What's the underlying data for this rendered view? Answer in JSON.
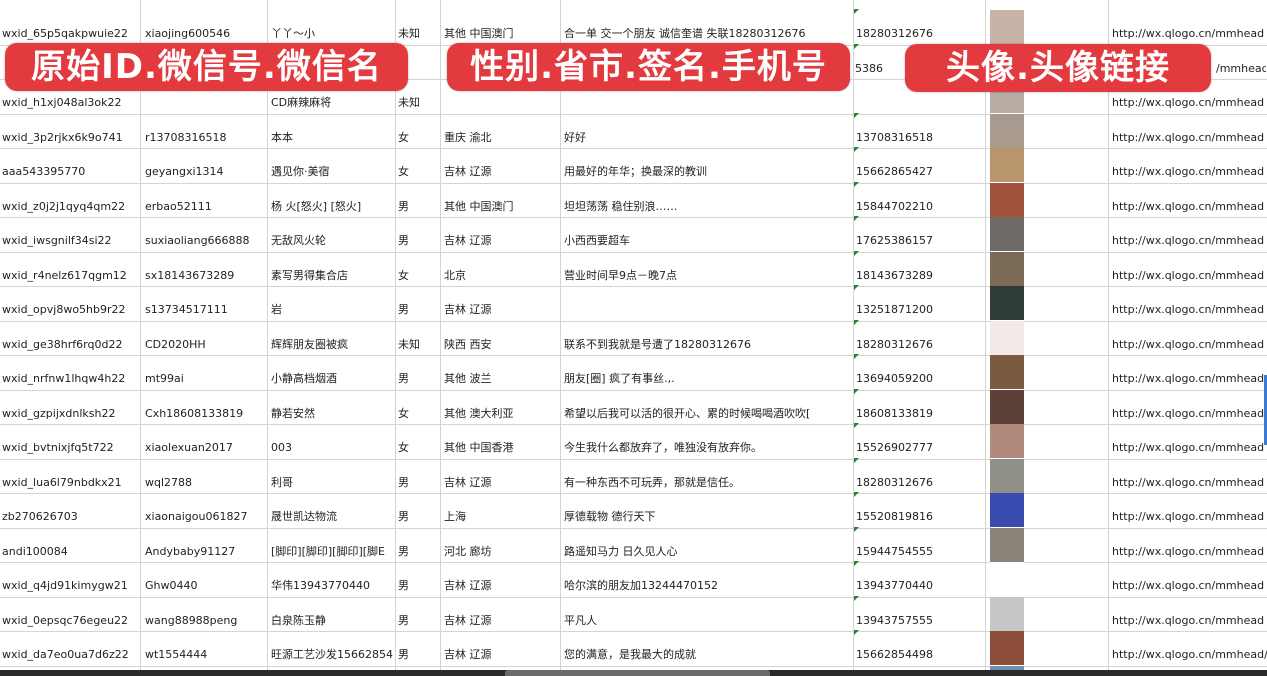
{
  "banners": {
    "left": "原始ID.微信号.微信名",
    "middle": "性别.省市.签名.手机号",
    "right": "头像.头像链接"
  },
  "rows": [
    {
      "id": "wxid_65p5qakpwuie22",
      "wechat": "xiaojing600546",
      "name": "丫丫～小",
      "gender": "未知",
      "region": "其他 中国澳门",
      "signature": "合一单 交一个朋友 诚信奎谱 失联18280312676",
      "phone": "18280312676",
      "avatar_color": "#c9b2a8",
      "link": "http://wx.qlogo.cn/mmhead"
    },
    {
      "id": "",
      "wechat": "",
      "name": "",
      "gender": "",
      "region": "",
      "signature": "",
      "phone": "5386",
      "avatar_color": "#8a8fb0",
      "link": "/mmhead"
    },
    {
      "id": "wxid_h1xj048al3ok22",
      "wechat": "",
      "name": "CD麻辣麻将",
      "gender": "未知",
      "region": "",
      "signature": "",
      "phone": "",
      "avatar_color": "#b7aca4",
      "link": "http://wx.qlogo.cn/mmhead"
    },
    {
      "id": "wxid_3p2rjkx6k9o741",
      "wechat": "r13708316518",
      "name": "本本",
      "gender": "女",
      "region": "重庆 渝北",
      "signature": "好好",
      "phone": "13708316518",
      "avatar_color": "#a89a8f",
      "link": "http://wx.qlogo.cn/mmhead"
    },
    {
      "id": "aaa543395770",
      "wechat": "geyangxi1314",
      "name": "遇见你·美宿",
      "gender": "女",
      "region": "吉林 辽源",
      "signature": "用最好的年华；换最深的教训",
      "phone": "15662865427",
      "avatar_color": "#b9956e",
      "link": "http://wx.qlogo.cn/mmhead"
    },
    {
      "id": "wxid_z0j2j1qyq4qm22",
      "wechat": "erbao52111",
      "name": "杨 火[怒火] [怒火]",
      "gender": "男",
      "region": "其他 中国澳门",
      "signature": "坦坦荡荡 稳住别浪……",
      "phone": "15844702210",
      "avatar_color": "#a0523d",
      "link": "http://wx.qlogo.cn/mmhead"
    },
    {
      "id": "wxid_iwsgnilf34si22",
      "wechat": "suxiaoliang666888",
      "name": "无敌风火轮",
      "gender": "男",
      "region": "吉林 辽源",
      "signature": "小西西要超车",
      "phone": "17625386157",
      "avatar_color": "#6e6a66",
      "link": "http://wx.qlogo.cn/mmhead"
    },
    {
      "id": "wxid_r4nelz617qgm12",
      "wechat": "sx18143673289",
      "name": "素写男得集合店",
      "gender": "女",
      "region": "北京",
      "signature": "营业时间早9点－晚7点",
      "phone": "18143673289",
      "avatar_color": "#7b6a55",
      "link": "http://wx.qlogo.cn/mmhead"
    },
    {
      "id": "wxid_opvj8wo5hb9r22",
      "wechat": "s13734517111",
      "name": "岩",
      "gender": "男",
      "region": "吉林 辽源",
      "signature": "",
      "phone": "13251871200",
      "avatar_color": "#2f3b35",
      "link": "http://wx.qlogo.cn/mmhead"
    },
    {
      "id": "wxid_ge38hrf6rq0d22",
      "wechat": "CD2020HH",
      "name": "辉辉朋友圈被疯",
      "gender": "未知",
      "region": "陕西 西安",
      "signature": "联系不到我就是号遭了18280312676",
      "phone": "18280312676",
      "avatar_color": "#f3e9e6",
      "link": "http://wx.qlogo.cn/mmhead"
    },
    {
      "id": "wxid_nrfnw1lhqw4h22",
      "wechat": "mt99ai",
      "name": "小静高档烟酒",
      "gender": "男",
      "region": "其他 波兰",
      "signature": "朋友[圈] 疯了有事丝.,.",
      "phone": "13694059200",
      "avatar_color": "#7c5a42",
      "link": "http://wx.qlogo.cn/mmhead"
    },
    {
      "id": "wxid_gzpijxdnlksh22",
      "wechat": "Cxh18608133819",
      "name": "静若安然",
      "gender": "女",
      "region": "其他 澳大利亚",
      "signature": "希望以后我可以活的很开心、累的时候喝喝酒吹吹[",
      "phone": "18608133819",
      "avatar_color": "#5a4038",
      "link": "http://wx.qlogo.cn/mmhead"
    },
    {
      "id": "wxid_bvtnixjfq5t722",
      "wechat": "xiaolexuan2017",
      "name": "003",
      "gender": "女",
      "region": "其他 中国香港",
      "signature": "今生我什么都放弃了，唯独没有放弃你。",
      "phone": "15526902777",
      "avatar_color": "#b08a7c",
      "link": "http://wx.qlogo.cn/mmhead"
    },
    {
      "id": "wxid_lua6l79nbdkx21",
      "wechat": "wql2788",
      "name": "利哥",
      "gender": "男",
      "region": "吉林 辽源",
      "signature": "有一种东西不可玩弄，那就是信任。",
      "phone": "18280312676",
      "avatar_color": "#8f9189",
      "link": "http://wx.qlogo.cn/mmhead"
    },
    {
      "id": "zb270626703",
      "wechat": "xiaonaigou061827",
      "name": "晟世凯达物流",
      "gender": "男",
      "region": "上海",
      "signature": "厚德载物 德行天下",
      "phone": "15520819816",
      "avatar_color": "#3a4bb0",
      "link": "http://wx.qlogo.cn/mmhead"
    },
    {
      "id": "andi100084",
      "wechat": "Andybaby91127",
      "name": "[脚印][脚印][脚印][脚E",
      "gender": "男",
      "region": "河北 廊坊",
      "signature": "路遥知马力 日久见人心",
      "phone": "15944754555",
      "avatar_color": "#8a837a",
      "link": "http://wx.qlogo.cn/mmhead"
    },
    {
      "id": "wxid_q4jd91kimygw21",
      "wechat": "Ghw0440",
      "name": "华伟13943770440",
      "gender": "男",
      "region": "吉林 辽源",
      "signature": "哈尔滨的朋友加13244470152",
      "phone": "13943770440",
      "avatar_color": "#ffffff",
      "link": "http://wx.qlogo.cn/mmhead"
    },
    {
      "id": "wxid_0epsqc76egeu22",
      "wechat": "wang88988peng",
      "name": "白泉陈玉静",
      "gender": "男",
      "region": "吉林 辽源",
      "signature": "平凡人",
      "phone": "13943757555",
      "avatar_color": "#c6c8c8",
      "link": "http://wx.qlogo.cn/mmhead"
    },
    {
      "id": "wxid_da7eo0ua7d6z22",
      "wechat": "wt1554444",
      "name": "旺源工艺沙发15662854",
      "gender": "男",
      "region": "吉林 辽源",
      "signature": "您的满意，是我最大的成就",
      "phone": "15662854498",
      "avatar_color": "#8c4e3a",
      "link": "http://wx.qlogo.cn/mmhead/"
    },
    {
      "id": "",
      "wechat": "",
      "name": "",
      "gender": "",
      "region": "",
      "signature": "",
      "phone": "",
      "avatar_color": "#6f8fb0",
      "link": ""
    }
  ]
}
